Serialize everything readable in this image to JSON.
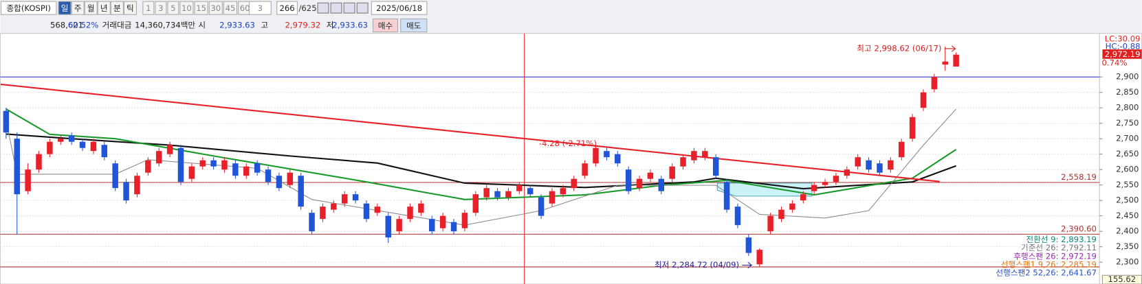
{
  "toolbar": {
    "symbol": "종합(KOSPI)",
    "periods": [
      "일",
      "주",
      "월",
      "년",
      "분",
      "틱"
    ],
    "intervals": [
      "1",
      "3",
      "5",
      "10",
      "15",
      "30",
      "45",
      "60"
    ],
    "count": "3",
    "bars": "266",
    "total": "/625",
    "date": "2025/06/18"
  },
  "quote": {
    "volume": "568,621",
    "ratio": "60.52%",
    "amount_label": "거래대금",
    "amount": "14,360,734백만",
    "open_label": "시",
    "open": "2,933.63",
    "high_label": "고",
    "high": "2,979.32",
    "low_label": "저",
    "low": "2,933.63",
    "buy": "매수",
    "sell": "매도"
  },
  "chart_data": {
    "type": "candlestick",
    "up_color": "#e8202a",
    "down_color": "#1f55d6",
    "grid": true,
    "ylim": [
      2234,
      3041
    ],
    "yticks": [
      {
        "value": 2300,
        "label": "2,300"
      },
      {
        "value": 2350,
        "label": "2,350"
      },
      {
        "value": 2400,
        "label": "2,400"
      },
      {
        "value": 2450,
        "label": "2,450"
      },
      {
        "value": 2500,
        "label": "2,500"
      },
      {
        "value": 2550,
        "label": "2,550"
      },
      {
        "value": 2600,
        "label": "2,600"
      },
      {
        "value": 2650,
        "label": "2,650"
      },
      {
        "value": 2700,
        "label": "2,700"
      },
      {
        "value": 2750,
        "label": "2,750"
      },
      {
        "value": 2800,
        "label": "2,800"
      },
      {
        "value": 2850,
        "label": "2,850"
      },
      {
        "value": 2900,
        "label": "2,900"
      }
    ],
    "candles": [
      [
        2790,
        2800,
        2700,
        2720
      ],
      [
        2700,
        2720,
        2390,
        2520
      ],
      [
        2530,
        2620,
        2520,
        2600
      ],
      [
        2600,
        2660,
        2590,
        2650
      ],
      [
        2650,
        2700,
        2640,
        2690
      ],
      [
        2690,
        2710,
        2680,
        2700
      ],
      [
        2710,
        2720,
        2680,
        2690
      ],
      [
        2690,
        2700,
        2660,
        2670
      ],
      [
        2660,
        2700,
        2650,
        2690
      ],
      [
        2680,
        2690,
        2630,
        2640
      ],
      [
        2620,
        2630,
        2530,
        2540
      ],
      [
        2560,
        2570,
        2490,
        2500
      ],
      [
        2520,
        2590,
        2510,
        2580
      ],
      [
        2590,
        2640,
        2580,
        2630
      ],
      [
        2620,
        2670,
        2610,
        2660
      ],
      [
        2650,
        2690,
        2640,
        2680
      ],
      [
        2670,
        2680,
        2550,
        2560
      ],
      [
        2570,
        2620,
        2560,
        2610
      ],
      [
        2610,
        2640,
        2600,
        2630
      ],
      [
        2630,
        2640,
        2600,
        2610
      ],
      [
        2600,
        2640,
        2590,
        2630
      ],
      [
        2620,
        2630,
        2570,
        2580
      ],
      [
        2580,
        2620,
        2570,
        2610
      ],
      [
        2620,
        2630,
        2580,
        2590
      ],
      [
        2600,
        2610,
        2550,
        2560
      ],
      [
        2580,
        2590,
        2530,
        2540
      ],
      [
        2550,
        2600,
        2540,
        2590
      ],
      [
        2580,
        2590,
        2470,
        2480
      ],
      [
        2460,
        2470,
        2390,
        2400
      ],
      [
        2440,
        2490,
        2430,
        2480
      ],
      [
        2470,
        2500,
        2460,
        2490
      ],
      [
        2490,
        2530,
        2480,
        2520
      ],
      [
        2520,
        2530,
        2490,
        2500
      ],
      [
        2490,
        2500,
        2430,
        2440
      ],
      [
        2460,
        2490,
        2450,
        2480
      ],
      [
        2450,
        2460,
        2362,
        2380
      ],
      [
        2400,
        2450,
        2390,
        2440
      ],
      [
        2440,
        2490,
        2430,
        2480
      ],
      [
        2460,
        2500,
        2450,
        2490
      ],
      [
        2440,
        2450,
        2390,
        2400
      ],
      [
        2410,
        2460,
        2400,
        2450
      ],
      [
        2430,
        2440,
        2390,
        2400
      ],
      [
        2410,
        2470,
        2400,
        2460
      ],
      [
        2460,
        2530,
        2450,
        2520
      ],
      [
        2510,
        2550,
        2500,
        2540
      ],
      [
        2530,
        2540,
        2500,
        2510
      ],
      [
        2510,
        2540,
        2500,
        2530
      ],
      [
        2530,
        2560,
        2520,
        2550
      ],
      [
        2540,
        2550,
        2510,
        2520
      ],
      [
        2510,
        2520,
        2440,
        2450
      ],
      [
        2490,
        2540,
        2480,
        2530
      ],
      [
        2520,
        2550,
        2510,
        2540
      ],
      [
        2540,
        2580,
        2530,
        2570
      ],
      [
        2580,
        2630,
        2570,
        2620
      ],
      [
        2620,
        2680,
        2610,
        2670
      ],
      [
        2660,
        2670,
        2630,
        2640
      ],
      [
        2650,
        2660,
        2610,
        2620
      ],
      [
        2600,
        2610,
        2520,
        2530
      ],
      [
        2540,
        2580,
        2530,
        2570
      ],
      [
        2570,
        2600,
        2560,
        2590
      ],
      [
        2570,
        2580,
        2520,
        2530
      ],
      [
        2570,
        2620,
        2560,
        2610
      ],
      [
        2610,
        2650,
        2600,
        2640
      ],
      [
        2630,
        2670,
        2620,
        2660
      ],
      [
        2640,
        2670,
        2630,
        2660
      ],
      [
        2640,
        2650,
        2570,
        2580
      ],
      [
        2560,
        2570,
        2460,
        2470
      ],
      [
        2480,
        2490,
        2410,
        2420
      ],
      [
        2380,
        2390,
        2320,
        2330
      ],
      [
        2293,
        2345,
        2284.72,
        2340
      ],
      [
        2400,
        2460,
        2390,
        2450
      ],
      [
        2440,
        2480,
        2430,
        2470
      ],
      [
        2470,
        2500,
        2460,
        2490
      ],
      [
        2500,
        2530,
        2490,
        2520
      ],
      [
        2530,
        2560,
        2520,
        2550
      ],
      [
        2550,
        2570,
        2540,
        2560
      ],
      [
        2560,
        2590,
        2550,
        2580
      ],
      [
        2580,
        2610,
        2570,
        2600
      ],
      [
        2610,
        2650,
        2600,
        2640
      ],
      [
        2630,
        2640,
        2590,
        2600
      ],
      [
        2620,
        2630,
        2580,
        2590
      ],
      [
        2600,
        2640,
        2590,
        2630
      ],
      [
        2640,
        2700,
        2630,
        2690
      ],
      [
        2700,
        2780,
        2690,
        2770
      ],
      [
        2800,
        2860,
        2790,
        2850
      ],
      [
        2860,
        2910,
        2850,
        2900
      ],
      [
        2940,
        2998.62,
        2920,
        2950
      ],
      [
        2933.63,
        2979.32,
        2933.63,
        2972.19
      ]
    ],
    "lines": [
      {
        "color": "#111111",
        "x": [
          0,
          6,
          15,
          26,
          34,
          42,
          53,
          63,
          65,
          73,
          83,
          87
        ],
        "values": [
          2715,
          2700,
          2679,
          2644,
          2621,
          2556,
          2542,
          2560,
          2572,
          2538,
          2560,
          2612
        ]
      },
      {
        "color": "#1a9a2a",
        "x": [
          0,
          4,
          10,
          19,
          33,
          42,
          53,
          60,
          66,
          74,
          83,
          87
        ],
        "values": [
          2796,
          2714,
          2700,
          2644,
          2560,
          2503,
          2518,
          2549,
          2565,
          2518,
          2572,
          2665
        ]
      },
      {
        "color": "#8a8a8a",
        "x": [
          0,
          1,
          10,
          13,
          23,
          28,
          42,
          49,
          56,
          65,
          69,
          75,
          79,
          84,
          87
        ],
        "values": [
          2761,
          2585,
          2585,
          2632,
          2604,
          2503,
          2420,
          2467,
          2549,
          2549,
          2455,
          2443,
          2467,
          2679,
          2796
        ]
      },
      {
        "color": "#e8202a",
        "x": [
          -0.5,
          85.5
        ],
        "values": [
          2876,
          2561
        ]
      }
    ],
    "hlines": [
      {
        "value": 2900,
        "color": "#3a3ad0"
      },
      {
        "value": 2558.19,
        "label": "2,558.19",
        "color": "#b03030"
      },
      {
        "value": 2390.6,
        "label": "2,390.60",
        "color": "#b03030"
      },
      {
        "value": 2284.72,
        "color": "#b03030"
      }
    ],
    "max_label": "최고 2,998.62 (06/17)",
    "min_label": "최저 2,284.72 (04/09)",
    "change_label": "-4.28 (-2.71%)",
    "scale_labels": {
      "lc": "LC:30.09",
      "hc": "HC:-0.88",
      "last": "2,972.19",
      "pct": "0.74%",
      "bottom": "155.62"
    },
    "legend": [
      {
        "text": "전환선 9: 2,893.19",
        "color": "#0a8a7a"
      },
      {
        "text": "기준선 26: 2,792.11",
        "color": "#777777"
      },
      {
        "text": "후행스팬 26: 2,972.19",
        "color": "#9a2ab0"
      },
      {
        "text": "선행스팬1 9,26: 2,285.19",
        "color": "#e07a10"
      },
      {
        "text": "선행스팬2 52,26: 2,641.67",
        "color": "#2a55c8"
      }
    ]
  }
}
